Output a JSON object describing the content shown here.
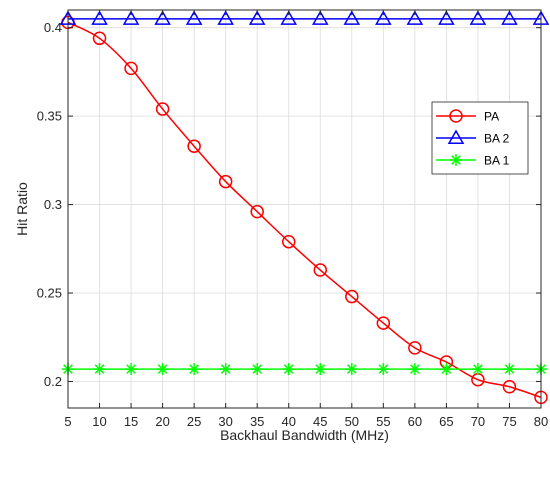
{
  "chart_data": {
    "type": "line",
    "xlabel": "Backhaul Bandwidth (MHz)",
    "ylabel": "Hit Ratio",
    "xlim": [
      5,
      80
    ],
    "ylim": [
      0.185,
      0.41
    ],
    "xticks": [
      5,
      10,
      15,
      20,
      25,
      30,
      35,
      40,
      45,
      50,
      55,
      60,
      65,
      70,
      75,
      80
    ],
    "yticks": [
      0.2,
      0.25,
      0.3,
      0.35,
      0.4
    ],
    "ytick_labels": [
      "0.2",
      "0.25",
      "0.3",
      "0.35",
      "0.4"
    ],
    "grid": true,
    "legend_position": "right",
    "x": [
      5,
      10,
      15,
      20,
      25,
      30,
      35,
      40,
      45,
      50,
      55,
      60,
      65,
      70,
      75,
      80
    ],
    "series": [
      {
        "name": "PA",
        "marker": "circle",
        "color": "#ff0000",
        "values": [
          0.403,
          0.394,
          0.377,
          0.354,
          0.333,
          0.313,
          0.296,
          0.279,
          0.263,
          0.248,
          0.233,
          0.219,
          0.211,
          0.201,
          0.197,
          0.191
        ]
      },
      {
        "name": "BA 2",
        "marker": "triangle",
        "color": "#0000ff",
        "values": [
          0.405,
          0.405,
          0.405,
          0.405,
          0.405,
          0.405,
          0.405,
          0.405,
          0.405,
          0.405,
          0.405,
          0.405,
          0.405,
          0.405,
          0.405,
          0.405
        ]
      },
      {
        "name": "BA 1",
        "marker": "asterisk",
        "color": "#00ff00",
        "values": [
          0.207,
          0.207,
          0.207,
          0.207,
          0.207,
          0.207,
          0.207,
          0.207,
          0.207,
          0.207,
          0.207,
          0.207,
          0.207,
          0.207,
          0.207,
          0.207
        ]
      }
    ]
  }
}
